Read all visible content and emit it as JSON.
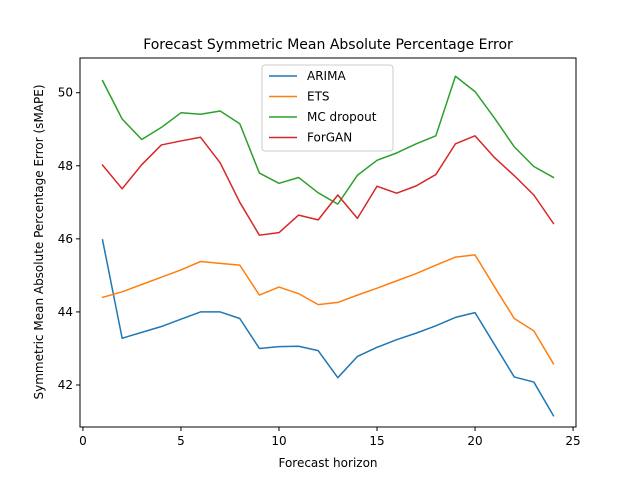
{
  "chart_data": {
    "type": "line",
    "title": "Forecast Symmetric Mean Absolute Percentage Error",
    "xlabel": "Forecast horizon",
    "ylabel": "Symmetric Mean Absolute Percentage Error (sMAPE)",
    "xlim": [
      -0.15,
      25.15
    ],
    "ylim": [
      40.85,
      50.95
    ],
    "xticks": [
      0,
      5,
      10,
      15,
      20,
      25
    ],
    "yticks": [
      42,
      44,
      46,
      48,
      50
    ],
    "grid": false,
    "legend_position": "top-center",
    "x": [
      1,
      2,
      3,
      4,
      5,
      6,
      7,
      8,
      9,
      10,
      11,
      12,
      13,
      14,
      15,
      16,
      17,
      18,
      19,
      20,
      21,
      22,
      23,
      24
    ],
    "series": [
      {
        "name": "ARIMA",
        "color": "#1f77b4",
        "values": [
          45.97,
          43.28,
          43.44,
          43.6,
          43.8,
          44.0,
          44.0,
          43.82,
          43.0,
          43.05,
          43.06,
          42.94,
          42.2,
          42.78,
          43.03,
          43.24,
          43.42,
          43.62,
          43.85,
          43.98,
          43.1,
          42.22,
          42.08,
          41.16
        ]
      },
      {
        "name": "ETS",
        "color": "#ff7f0e",
        "values": [
          44.4,
          44.55,
          44.75,
          44.95,
          45.15,
          45.38,
          45.33,
          45.28,
          44.46,
          44.68,
          44.5,
          44.2,
          44.26,
          44.46,
          44.65,
          44.85,
          45.05,
          45.28,
          45.5,
          45.56,
          44.68,
          43.82,
          43.48,
          42.58
        ]
      },
      {
        "name": "MC dropout",
        "color": "#2ca02c",
        "values": [
          50.33,
          49.28,
          48.72,
          49.05,
          49.45,
          49.41,
          49.5,
          49.15,
          47.8,
          47.52,
          47.68,
          47.26,
          46.95,
          47.74,
          48.15,
          48.35,
          48.6,
          48.82,
          50.45,
          50.03,
          49.3,
          48.52,
          47.98,
          47.68
        ]
      },
      {
        "name": "ForGAN",
        "color": "#d62728",
        "values": [
          48.02,
          47.37,
          48.03,
          48.57,
          48.68,
          48.78,
          48.08,
          47.0,
          46.1,
          46.17,
          46.65,
          46.52,
          47.2,
          46.56,
          47.44,
          47.25,
          47.45,
          47.76,
          48.6,
          48.82,
          48.22,
          47.73,
          47.2,
          46.42
        ]
      }
    ]
  }
}
